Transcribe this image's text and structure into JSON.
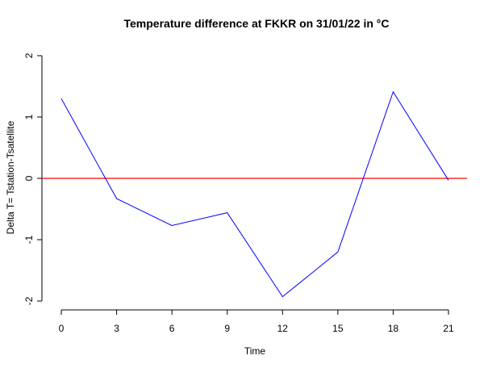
{
  "chart_data": {
    "type": "line",
    "title": "Temperature difference at FKKR on 31/01/22 in °C",
    "xlabel": "Time",
    "ylabel": "Delta T= Tstation-Tsatellite",
    "xlim": [
      0,
      21
    ],
    "ylim": [
      -2,
      2
    ],
    "x_ticks": [
      "0",
      "3",
      "6",
      "9",
      "12",
      "15",
      "18",
      "21"
    ],
    "y_ticks": [
      "-2",
      "-1",
      "0",
      "1",
      "2"
    ],
    "grid": false,
    "series": [
      {
        "color": "#0000ff",
        "x": [
          0,
          3,
          6,
          9,
          12,
          15,
          18,
          21
        ],
        "y": [
          1.3,
          -0.33,
          -0.77,
          -0.56,
          -1.93,
          -1.2,
          1.41,
          -0.03
        ]
      }
    ],
    "reference_line": {
      "y": 0,
      "color": "#ff0000"
    }
  }
}
